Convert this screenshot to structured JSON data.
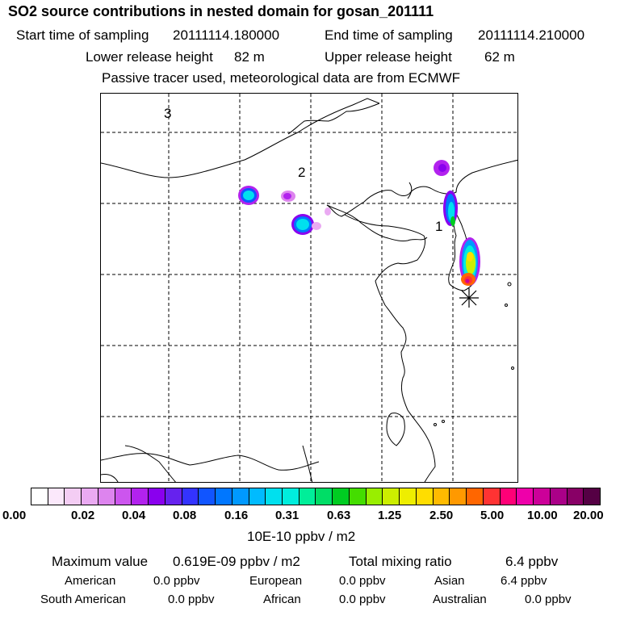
{
  "title": "SO2 source contributions in nested domain for gosan_201111",
  "start_label": "Start time of sampling",
  "start_value": "20111114.180000",
  "end_label": "End time of sampling",
  "end_value": "20111114.210000",
  "lower_label": "Lower release height",
  "lower_value": "82 m",
  "upper_label": "Upper release height",
  "upper_value": "62 m",
  "note": "Passive tracer used, meteorological data are from ECMWF",
  "map": {
    "labels": [
      "1",
      "2",
      "3"
    ]
  },
  "colorbar": {
    "colors": [
      "#ffffff",
      "#fbe8fb",
      "#f4cdf4",
      "#eaaaf2",
      "#dd84ee",
      "#cc55ee",
      "#b222ee",
      "#8a00ee",
      "#6622ee",
      "#3333ff",
      "#1155ff",
      "#0077ff",
      "#0099ff",
      "#00bbff",
      "#00e0ee",
      "#00eedd",
      "#00ee99",
      "#00dd66",
      "#00cc22",
      "#44dd00",
      "#99ee00",
      "#ccee00",
      "#eeee00",
      "#ffdd00",
      "#ffbb00",
      "#ff9900",
      "#ff6600",
      "#ff3333",
      "#ff0077",
      "#ee00aa",
      "#cc0099",
      "#aa0088",
      "#880066",
      "#550044"
    ],
    "ticks": [
      "0.00",
      "0.02",
      "0.04",
      "0.08",
      "0.16",
      "0.31",
      "0.63",
      "1.25",
      "2.50",
      "5.00",
      "10.00",
      "20.00"
    ],
    "unit": "10E-10 ppbv / m2"
  },
  "summary": {
    "max_label": "Maximum value",
    "max_value": "0.619E-09 ppbv / m2",
    "total_label": "Total mixing ratio",
    "total_value": "6.4 ppbv"
  },
  "regions": [
    {
      "name": "American",
      "value": "0.0 ppbv"
    },
    {
      "name": "European",
      "value": "0.0 ppbv"
    },
    {
      "name": "Asian",
      "value": "6.4 ppbv"
    },
    {
      "name": "South American",
      "value": "0.0 ppbv"
    },
    {
      "name": "African",
      "value": "0.0 ppbv"
    },
    {
      "name": "Australian",
      "value": "0.0 ppbv"
    }
  ]
}
